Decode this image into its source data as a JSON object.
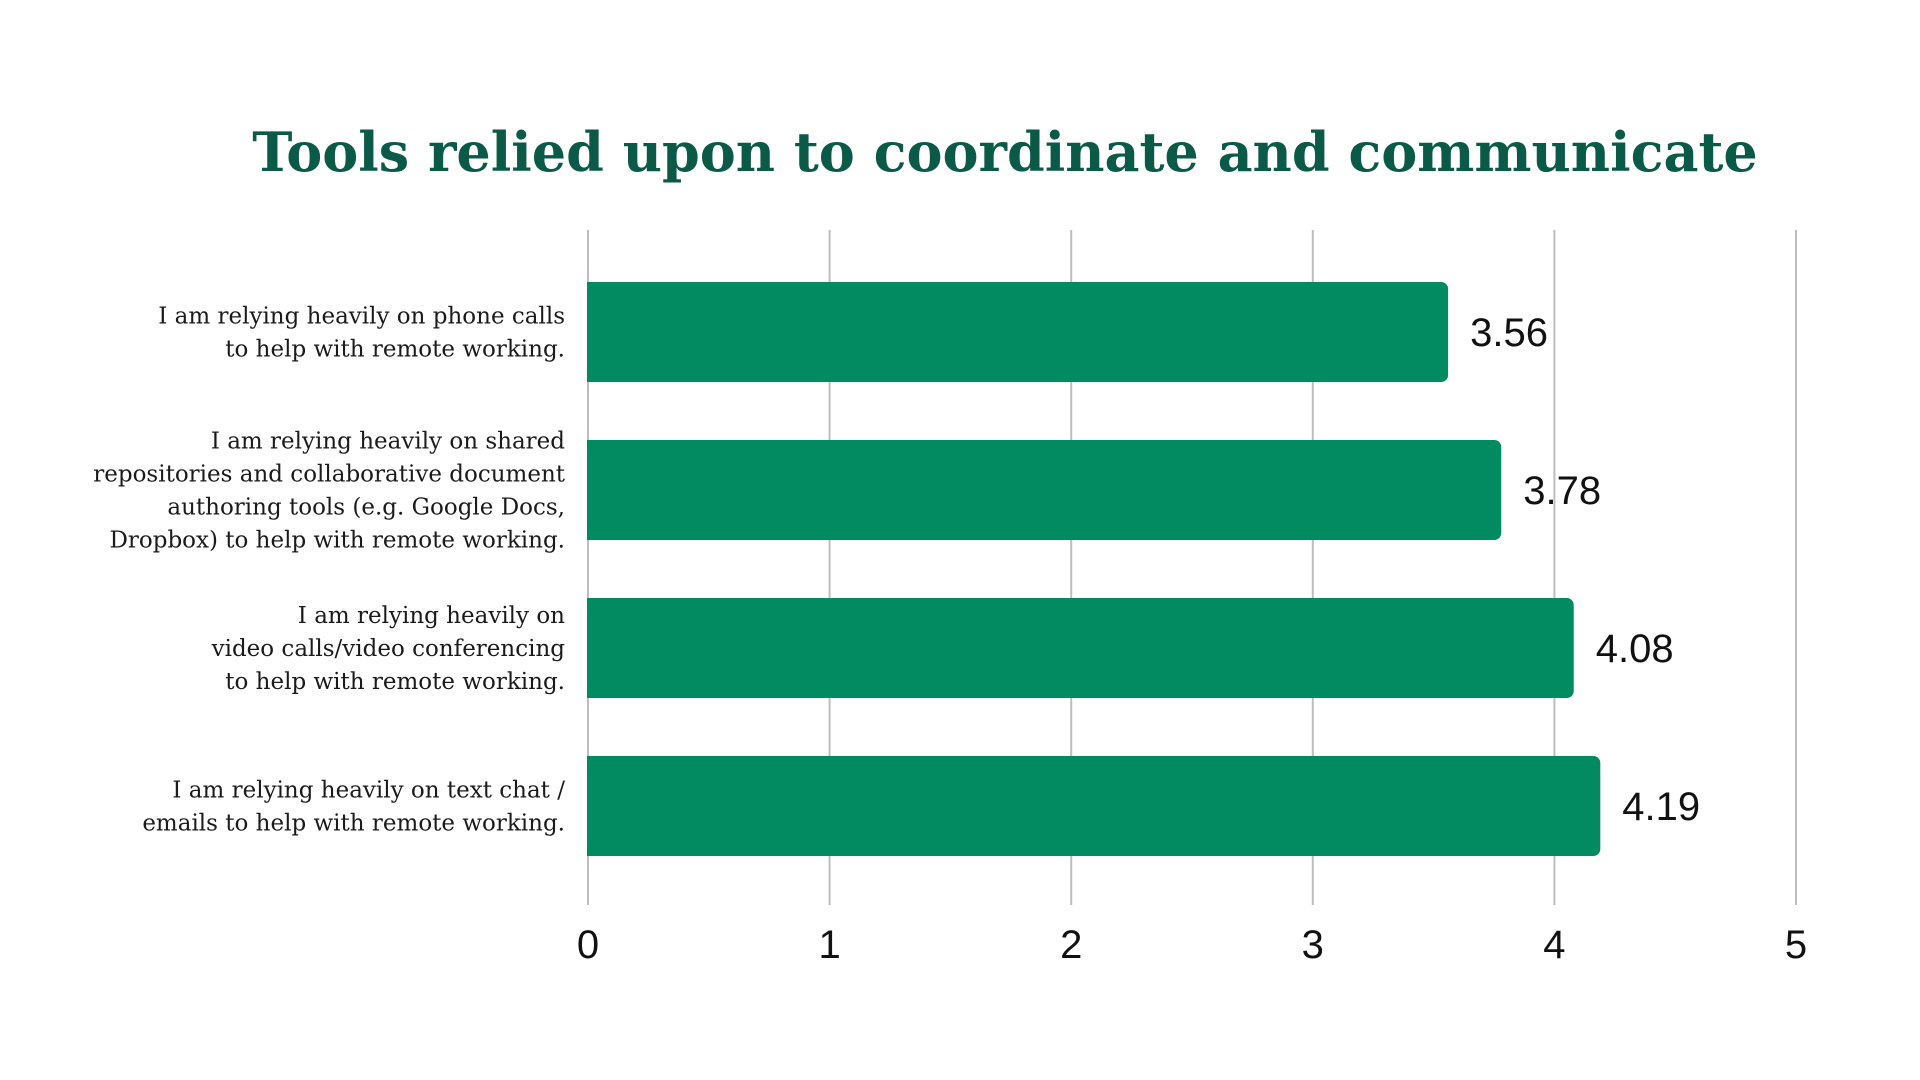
{
  "chart_data": {
    "type": "bar",
    "orientation": "horizontal",
    "title": "Tools relied upon to coordinate and communicate",
    "categories": [
      [
        "I am relying heavily on phone calls",
        "to help with remote working."
      ],
      [
        "I am relying heavily on shared",
        "repositories and collaborative document",
        "authoring tools (e.g. Google Docs,",
        "Dropbox) to help with remote working."
      ],
      [
        "I am relying heavily on",
        "video calls/video conferencing",
        "to help with remote working."
      ],
      [
        "I am relying heavily on text chat /",
        "emails to help with remote working."
      ]
    ],
    "values": [
      3.56,
      3.78,
      4.08,
      4.19
    ],
    "value_labels": [
      "3.56",
      "3.78",
      "4.08",
      "4.19"
    ],
    "xlim": [
      0,
      5
    ],
    "xticks": [
      "0",
      "1",
      "2",
      "3",
      "4",
      "5"
    ],
    "grid": "vertical",
    "colors": {
      "bar": "#028a60",
      "title": "#0b5a48",
      "grid": "#bdbdbd"
    }
  }
}
